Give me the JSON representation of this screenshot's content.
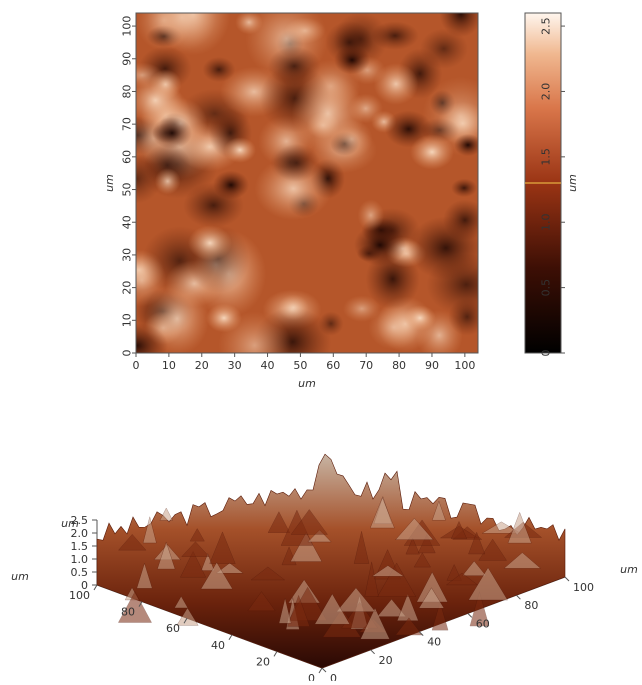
{
  "chart_data": [
    {
      "type": "heatmap",
      "title": "",
      "xlabel": "um",
      "ylabel": "um",
      "xticks": [
        "0",
        "10",
        "20",
        "30",
        "40",
        "50",
        "60",
        "70",
        "80",
        "90",
        "100"
      ],
      "yticks": [
        "0",
        "10",
        "20",
        "30",
        "40",
        "50",
        "60",
        "70",
        "80",
        "90",
        "100"
      ],
      "xlim": [
        0,
        104
      ],
      "ylim": [
        0,
        104
      ],
      "colorbar": {
        "label": "um",
        "ticks": [
          "0",
          "0.5",
          "1.0",
          "1.5",
          "2.0",
          "2.5"
        ],
        "range": [
          0,
          2.6
        ],
        "marker_value": 1.3
      },
      "colors": {
        "low": "#1e0a04",
        "mid": "#9c3e17",
        "high": "#f6ddc6"
      }
    },
    {
      "type": "surface3d",
      "z_label": "um",
      "x_label": "um",
      "zticks": [
        "0",
        "0.5",
        "1.0",
        "1.5",
        "2.0",
        "2.5"
      ],
      "left_axis_ticks": [
        "100",
        "80",
        "60",
        "40",
        "20",
        "0"
      ],
      "right_axis_ticks": [
        "0",
        "20",
        "40",
        "60",
        "80",
        "100"
      ]
    }
  ]
}
